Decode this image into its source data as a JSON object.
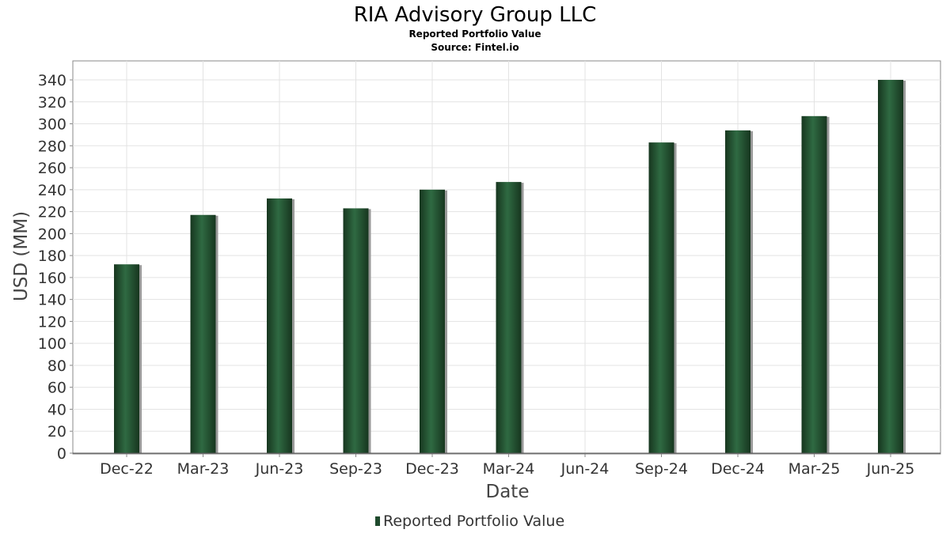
{
  "chart_data": {
    "type": "bar",
    "title": "RIA Advisory Group LLC",
    "subtitles": [
      "Reported Portfolio Value",
      "Source: Fintel.io"
    ],
    "xlabel": "Date",
    "ylabel": "USD (MM)",
    "categories": [
      "Dec-22",
      "Mar-23",
      "Jun-23",
      "Sep-23",
      "Dec-23",
      "Mar-24",
      "Jun-24",
      "Sep-24",
      "Dec-24",
      "Mar-25",
      "Jun-25"
    ],
    "series": [
      {
        "name": "Reported Portfolio Value",
        "values": [
          172,
          217,
          232,
          223,
          240,
          247,
          null,
          283,
          294,
          307,
          340
        ]
      }
    ],
    "ylim": [
      0,
      340
    ],
    "yticks": [
      0,
      20,
      40,
      60,
      80,
      100,
      120,
      140,
      160,
      180,
      200,
      220,
      240,
      260,
      280,
      300,
      320,
      340
    ],
    "grid": true,
    "legend_position": "bottom-center",
    "colors": {
      "bar": "#1f4a2d",
      "bar_highlight": "#2f6a42",
      "bar_shadow": "#9a9a9a",
      "grid": "#e3e3e3",
      "plot_border": "#888888"
    }
  }
}
